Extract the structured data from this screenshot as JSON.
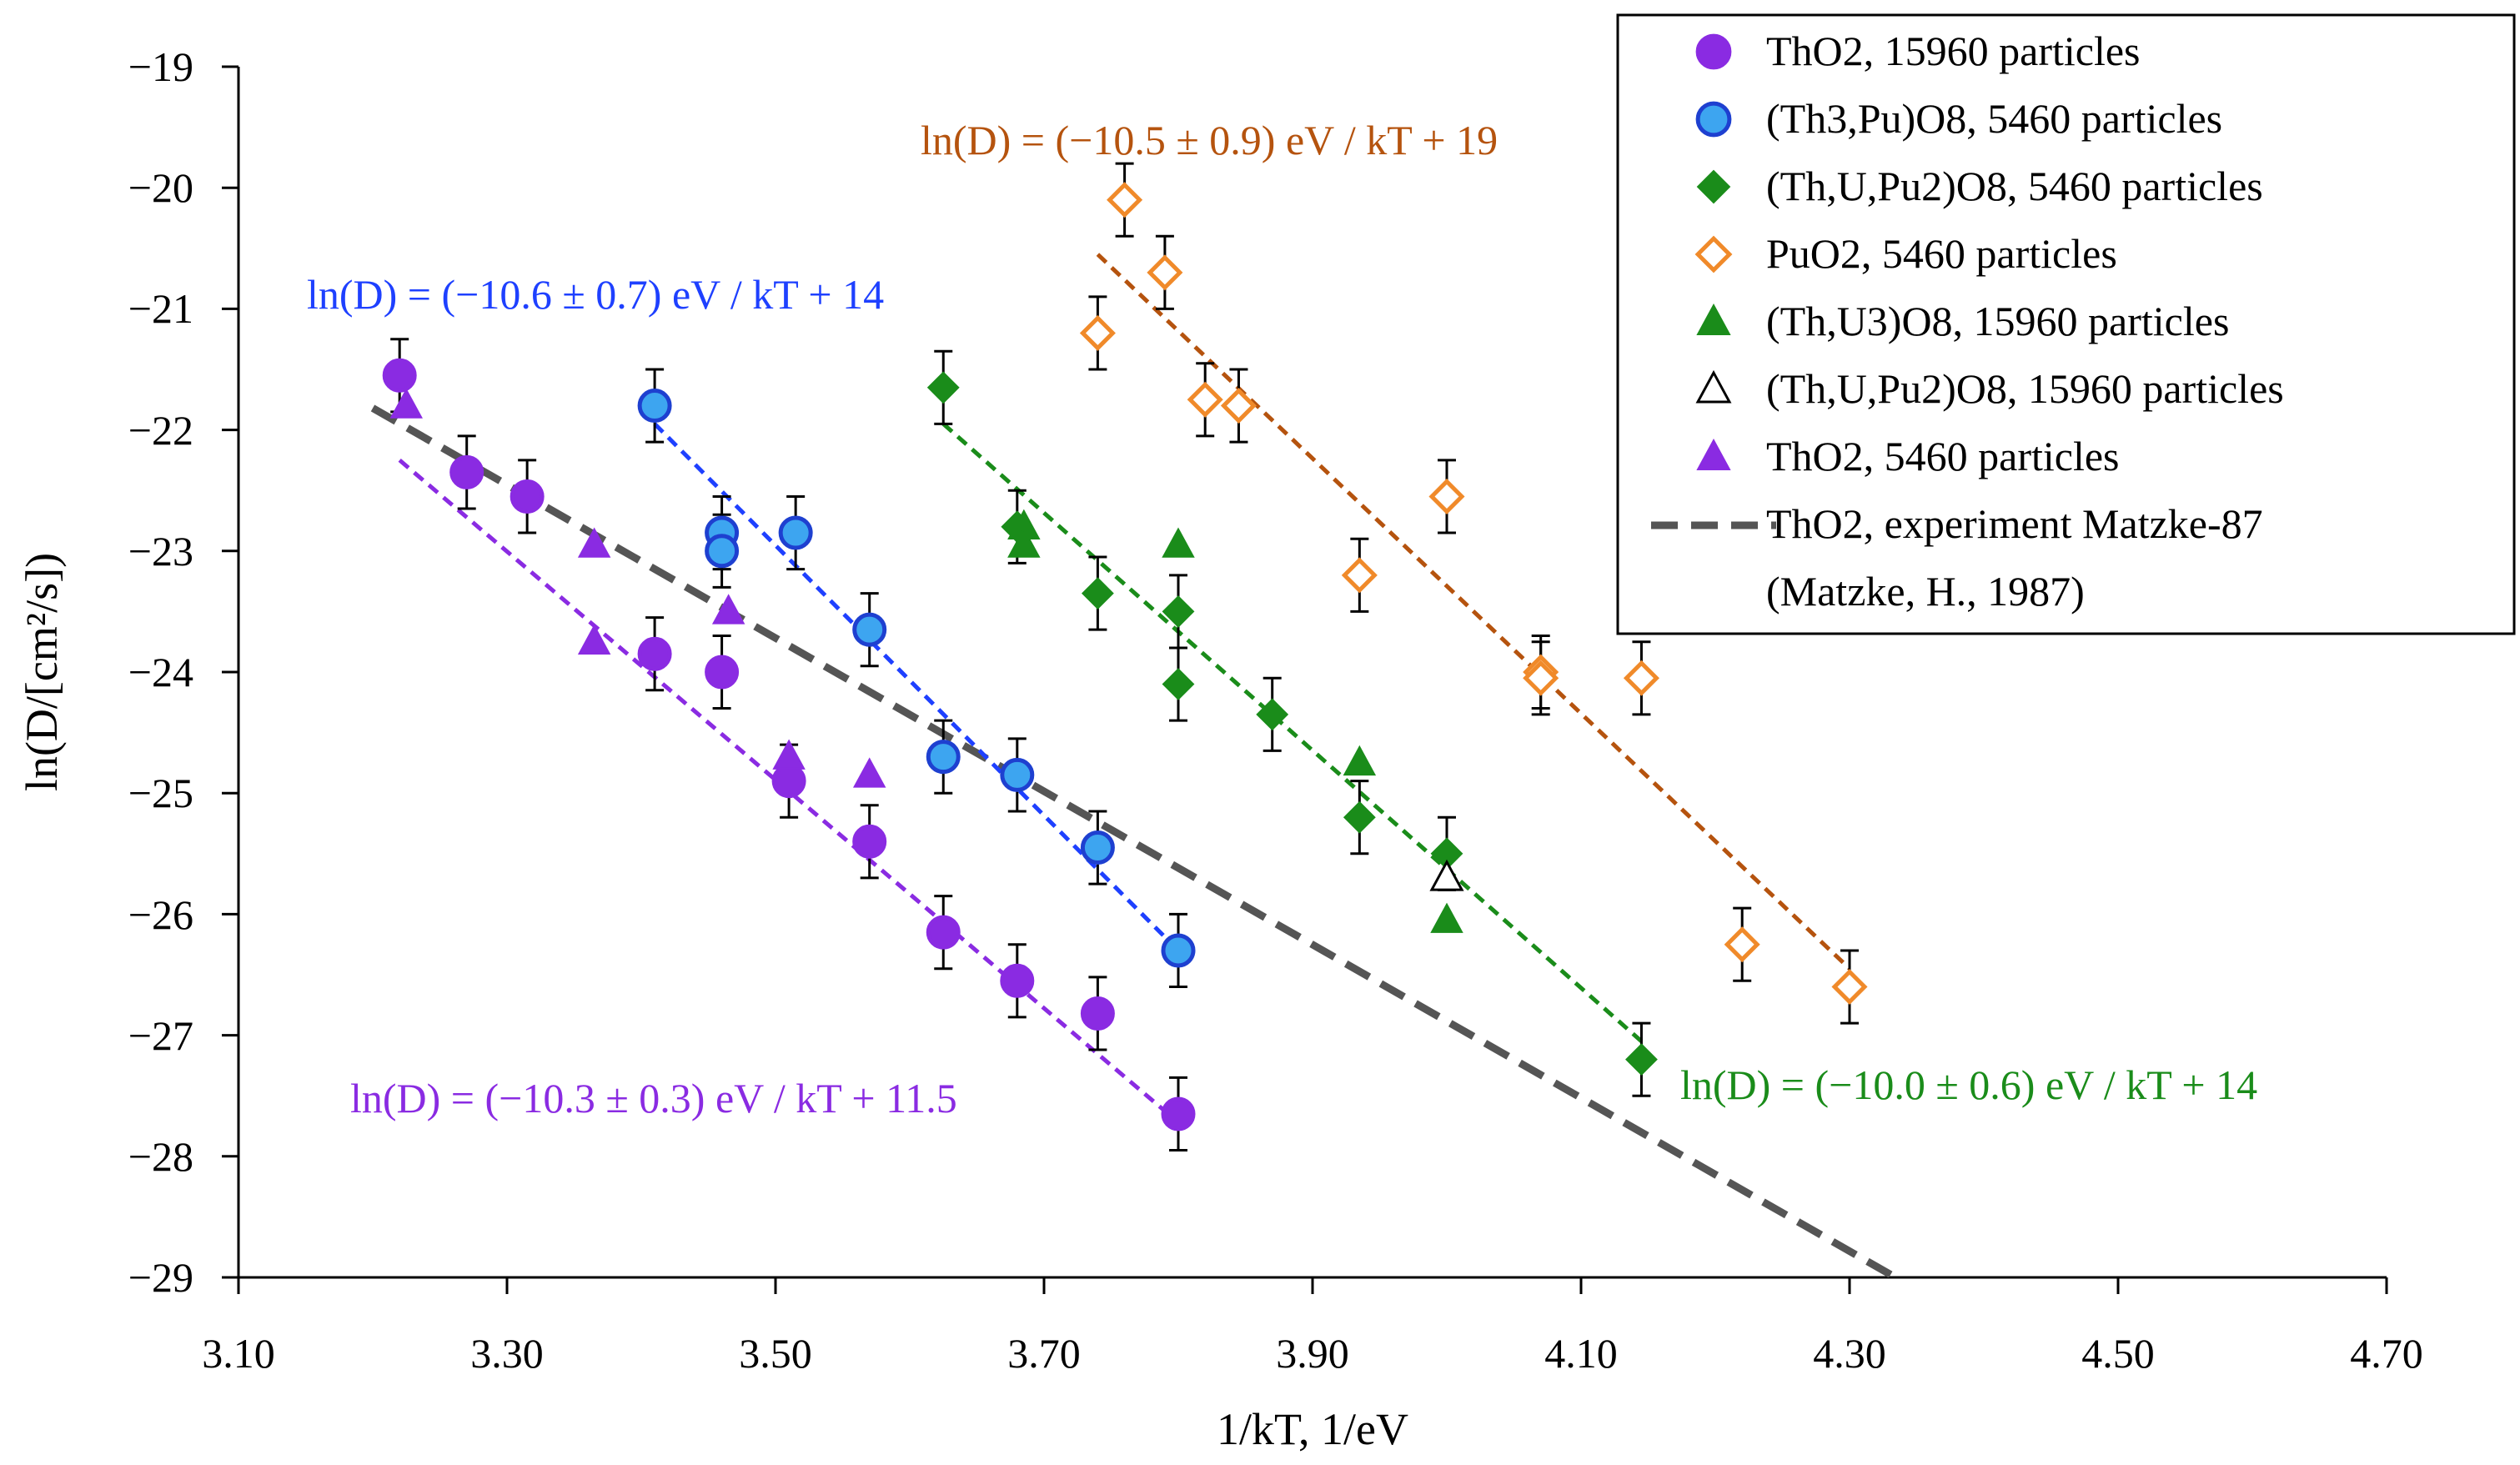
{
  "chart_data": {
    "type": "scatter",
    "xlabel": "1/kT, 1/eV",
    "ylabel": "ln(D/[cm²/s])",
    "xlim": [
      3.1,
      4.7
    ],
    "ylim": [
      -29,
      -19
    ],
    "xticks": [
      3.1,
      3.3,
      3.5,
      3.7,
      3.9,
      4.1,
      4.3,
      4.5,
      4.7
    ],
    "yticks": [
      -19,
      -20,
      -21,
      -22,
      -23,
      -24,
      -25,
      -26,
      -27,
      -28,
      -29
    ],
    "x_tick_labels": [
      "3.10",
      "3.30",
      "3.50",
      "3.70",
      "3.90",
      "4.10",
      "4.30",
      "4.50",
      "4.70"
    ],
    "y_tick_labels": [
      "−19",
      "−20",
      "−21",
      "−22",
      "−23",
      "−24",
      "−25",
      "−26",
      "−27",
      "−28",
      "−29"
    ],
    "legend_position": "top-right",
    "series": [
      {
        "name": "ThO2, 15960 particles",
        "marker": "circle",
        "filled": true,
        "color": "#8A2BE2",
        "edge": "#8A2BE2",
        "error": 0.3,
        "x": [
          3.22,
          3.27,
          3.315,
          3.41,
          3.46,
          3.51,
          3.57,
          3.625,
          3.68,
          3.74,
          3.8
        ],
        "y": [
          -21.55,
          -22.35,
          -22.55,
          -23.85,
          -24.0,
          -24.9,
          -25.4,
          -26.15,
          -26.55,
          -26.82,
          -27.65
        ]
      },
      {
        "name": "(Th3,Pu)O8, 5460 particles",
        "marker": "circle",
        "filled": true,
        "color": "#3DA5F0",
        "edge": "#1E40D0",
        "error": 0.3,
        "x": [
          3.41,
          3.46,
          3.46,
          3.515,
          3.57,
          3.625,
          3.68,
          3.74,
          3.8
        ],
        "y": [
          -21.8,
          -22.85,
          -23.0,
          -22.85,
          -23.65,
          -24.7,
          -24.85,
          -25.45,
          -26.3
        ]
      },
      {
        "name": "(Th,U,Pu2)O8, 5460 particles",
        "marker": "diamond",
        "filled": true,
        "color": "#1A8C1A",
        "edge": "#1A8C1A",
        "error": 0.3,
        "x": [
          3.625,
          3.68,
          3.74,
          3.8,
          3.8,
          3.87,
          3.935,
          4.0,
          4.145
        ],
        "y": [
          -21.65,
          -22.8,
          -23.35,
          -23.5,
          -24.1,
          -24.35,
          -25.2,
          -25.5,
          -27.2
        ]
      },
      {
        "name": "PuO2, 5460 particles",
        "marker": "diamond",
        "filled": false,
        "color": "#ffffff",
        "edge": "#F08A2A",
        "error": 0.3,
        "x": [
          3.74,
          3.76,
          3.79,
          3.82,
          3.845,
          3.935,
          4.0,
          4.07,
          4.07,
          4.145,
          4.22,
          4.3
        ],
        "y": [
          -21.2,
          -20.1,
          -20.7,
          -21.75,
          -21.8,
          -23.2,
          -22.55,
          -24.0,
          -24.05,
          -24.05,
          -26.25,
          -26.6
        ]
      },
      {
        "name": "(Th,U3)O8, 15960 particles",
        "marker": "triangle",
        "filled": true,
        "color": "#1A8C1A",
        "edge": "#1A8C1A",
        "x": [
          3.685,
          3.685,
          3.8,
          3.935,
          4.0
        ],
        "y": [
          -22.8,
          -22.95,
          -22.95,
          -24.75,
          -26.05
        ]
      },
      {
        "name": "(Th,U,Pu2)O8, 15960 particles",
        "marker": "triangle",
        "filled": false,
        "color": "#ffffff",
        "edge": "#000000",
        "x": [
          4.0
        ],
        "y": [
          -25.7
        ]
      },
      {
        "name": "ThO2, 5460 particles",
        "marker": "triangle",
        "filled": true,
        "color": "#8A2BE2",
        "edge": "#8A2BE2",
        "x": [
          3.225,
          3.365,
          3.365,
          3.465,
          3.51,
          3.57
        ],
        "y": [
          -21.8,
          -22.95,
          -23.75,
          -23.5,
          -24.7,
          -24.85
        ]
      }
    ],
    "fits": [
      {
        "color": "#8A2BE2",
        "x": [
          3.22,
          3.8
        ],
        "y": [
          -22.25,
          -27.72
        ],
        "label": "ln(D) = (−10.3 ± 0.3) eV / kT + 11.5"
      },
      {
        "color": "#1E40FF",
        "x": [
          3.41,
          3.8
        ],
        "y": [
          -21.95,
          -26.3
        ],
        "label": "ln(D) = (−10.6 ± 0.7) eV / kT + 14"
      },
      {
        "color": "#1A8C1A",
        "x": [
          3.625,
          4.145
        ],
        "y": [
          -21.95,
          -27.05
        ],
        "label": "ln(D) = (−10.0 ± 0.6) eV / kT + 14"
      },
      {
        "color": "#B5530E",
        "x": [
          3.74,
          4.3
        ],
        "y": [
          -20.55,
          -26.45
        ],
        "label": "ln(D) = (−10.5 ± 0.9) eV / kT + 19"
      }
    ],
    "reference_line": {
      "name": "ThO2, experiment Matzke-87",
      "name_line2": "(Matzke, H., 1987)",
      "color": "#555555",
      "x": [
        3.2,
        4.35
      ],
      "y": [
        -21.82,
        -29.1
      ]
    }
  }
}
